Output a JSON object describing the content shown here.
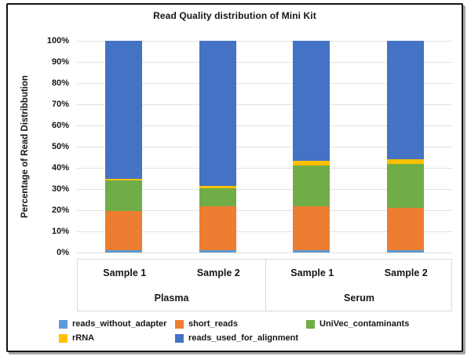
{
  "chart_data": {
    "type": "bar",
    "stacked": true,
    "title": "Read Quality distribution of Mini Kit",
    "ylabel": "Percentage of Read Distribbution",
    "ylim": [
      0,
      100
    ],
    "ytick_step": 10,
    "ytick_suffix": "%",
    "grid": true,
    "legend_position": "bottom",
    "legend_rows": [
      [
        0,
        1,
        2
      ],
      [
        3,
        4
      ]
    ],
    "groups": [
      {
        "label": "Plasma",
        "categories": [
          "Sample 1",
          "Sample 2"
        ]
      },
      {
        "label": "Serum",
        "categories": [
          "Sample 1",
          "Sample 2"
        ]
      }
    ],
    "series": [
      {
        "name": "reads_without_adapter",
        "color": "#5B9BD5",
        "values": [
          1,
          1,
          1,
          1
        ]
      },
      {
        "name": "short_reads",
        "color": "#ED7D31",
        "values": [
          18.5,
          21,
          21,
          20
        ]
      },
      {
        "name": "UniVec_contaminants",
        "color": "#70AD47",
        "values": [
          14.5,
          8.5,
          19,
          21
        ]
      },
      {
        "name": "rRNA",
        "color": "#FFC000",
        "values": [
          1,
          1,
          2.5,
          2
        ]
      },
      {
        "name": "reads_used_for_alignment",
        "color": "#4472C4",
        "values": [
          65,
          68.5,
          56.5,
          56
        ]
      }
    ]
  }
}
